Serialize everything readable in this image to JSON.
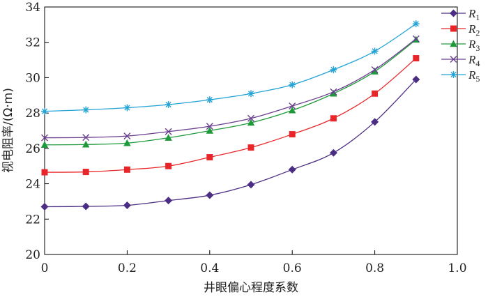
{
  "chart_data": {
    "type": "line",
    "xlabel": "井眼偏心程度系数",
    "ylabel": "视电阻率/(Ω·m)",
    "xlim": [
      0,
      1.0
    ],
    "ylim": [
      20,
      34
    ],
    "x_ticks": [
      "0",
      "0.2",
      "0.4",
      "0.6",
      "0.8",
      "1.0"
    ],
    "y_ticks": [
      "20",
      "22",
      "24",
      "26",
      "28",
      "30",
      "32",
      "34"
    ],
    "x": [
      0,
      0.1,
      0.2,
      0.3,
      0.4,
      0.5,
      0.6,
      0.7,
      0.8,
      0.9
    ],
    "legend_position": "top-right",
    "series": [
      {
        "name": "R",
        "sub": "1",
        "color": "#4b2e83",
        "marker": "diamond",
        "values": [
          22.7,
          22.72,
          22.78,
          23.05,
          23.35,
          23.95,
          24.8,
          25.75,
          27.5,
          29.9
        ]
      },
      {
        "name": "R",
        "sub": "2",
        "color": "#e8262a",
        "marker": "square",
        "values": [
          24.65,
          24.67,
          24.8,
          25.0,
          25.5,
          26.05,
          26.8,
          27.7,
          29.1,
          31.1
        ]
      },
      {
        "name": "R",
        "sub": "3",
        "color": "#1f9a3a",
        "marker": "triangle",
        "values": [
          26.2,
          26.22,
          26.3,
          26.6,
          27.0,
          27.45,
          28.15,
          29.1,
          30.35,
          32.15
        ]
      },
      {
        "name": "R",
        "sub": "4",
        "color": "#6a3d8f",
        "marker": "x",
        "values": [
          26.6,
          26.62,
          26.7,
          26.95,
          27.25,
          27.7,
          28.4,
          29.2,
          30.45,
          32.2
        ]
      },
      {
        "name": "R",
        "sub": "5",
        "color": "#22a3d6",
        "marker": "asterisk",
        "values": [
          28.1,
          28.18,
          28.3,
          28.48,
          28.75,
          29.1,
          29.6,
          30.45,
          31.5,
          33.05
        ]
      }
    ]
  }
}
